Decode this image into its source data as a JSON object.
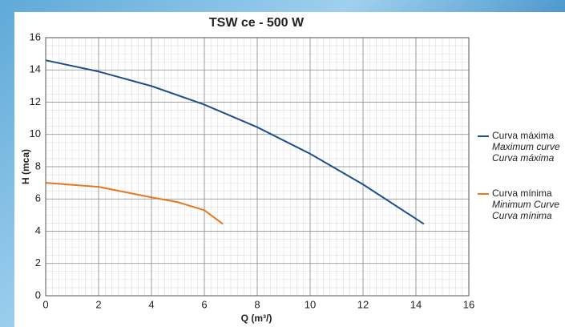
{
  "chart_data": {
    "type": "line",
    "title": "TSW ce - 500 W",
    "x_label": "Q (m³/)",
    "y_label": "H (mca)",
    "xlim": [
      0,
      16
    ],
    "xticks": [
      0,
      2,
      4,
      6,
      8,
      10,
      12,
      14,
      16
    ],
    "ylim": [
      0,
      16
    ],
    "yticks": [
      0,
      2,
      4,
      6,
      8,
      10,
      12,
      14,
      16
    ],
    "grid": true,
    "minor_grid": true,
    "legend": "right",
    "series": [
      {
        "name": "Curva máxima",
        "name_en": "Maximum curve",
        "name_alt": "Curva máxima",
        "color": "#1f4e8c",
        "x": [
          0,
          2,
          4,
          6,
          8,
          10,
          12,
          14.3
        ],
        "values": [
          14.6,
          13.9,
          13.0,
          11.85,
          10.45,
          8.8,
          6.9,
          4.45
        ]
      },
      {
        "name": "Curva mínima",
        "name_en": "Minimum Curve",
        "name_alt": "Curva mínima",
        "color": "#e87722",
        "x": [
          0,
          2,
          4,
          5,
          6,
          6.7
        ],
        "values": [
          7.0,
          6.75,
          6.1,
          5.8,
          5.3,
          4.45
        ]
      }
    ]
  }
}
